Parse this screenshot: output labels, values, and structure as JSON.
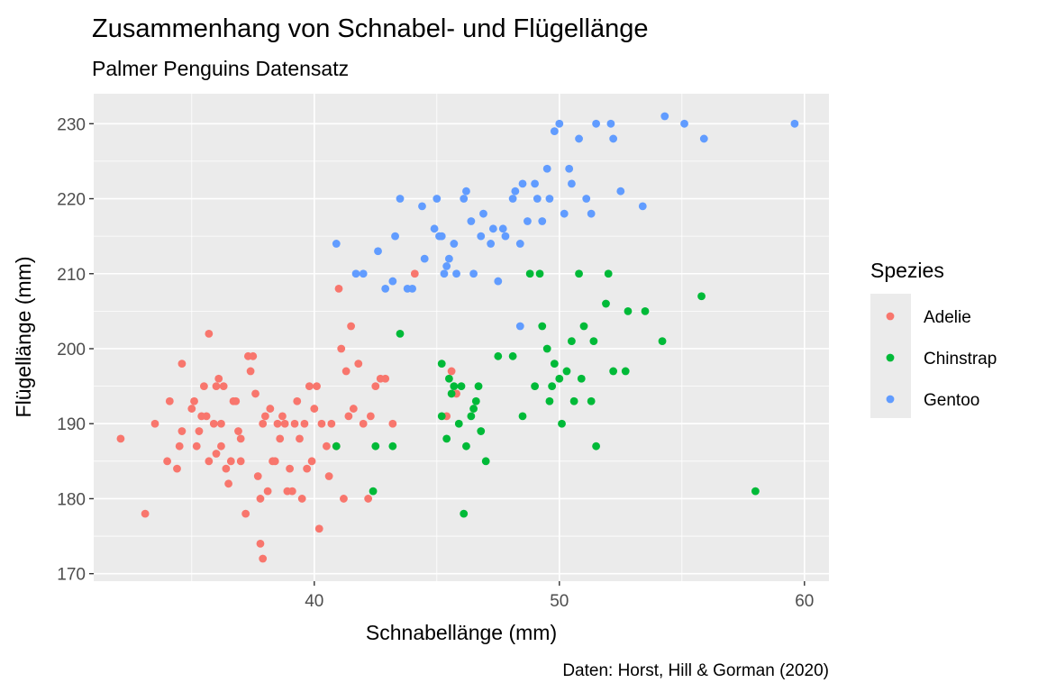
{
  "chart_data": {
    "type": "scatter",
    "title": "Zusammenhang von Schnabel- und Flügellänge",
    "subtitle": "Palmer Penguins Datensatz",
    "xlabel": "Schnabellänge (mm)",
    "ylabel": "Flügellänge (mm)",
    "caption": "Daten: Horst, Hill & Gorman (2020)",
    "xlim": [
      31,
      61
    ],
    "ylim": [
      169,
      234
    ],
    "x_ticks": [
      40,
      50,
      60
    ],
    "y_ticks": [
      170,
      180,
      190,
      200,
      210,
      220,
      230
    ],
    "grid": true,
    "background": "#ebebeb",
    "legend": {
      "title": "Spezies",
      "position": "right"
    },
    "series": [
      {
        "name": "Adelie",
        "color": "#F8766D",
        "points": [
          [
            32.1,
            188
          ],
          [
            33.1,
            178
          ],
          [
            33.5,
            190
          ],
          [
            34.0,
            185
          ],
          [
            34.1,
            193
          ],
          [
            34.4,
            184
          ],
          [
            34.5,
            187
          ],
          [
            34.6,
            198
          ],
          [
            34.6,
            189
          ],
          [
            35.0,
            192
          ],
          [
            35.1,
            193
          ],
          [
            35.2,
            187
          ],
          [
            35.3,
            189
          ],
          [
            35.5,
            195
          ],
          [
            35.6,
            191
          ],
          [
            35.7,
            185
          ],
          [
            35.7,
            202
          ],
          [
            35.9,
            190
          ],
          [
            36.0,
            195
          ],
          [
            36.0,
            186
          ],
          [
            36.2,
            187
          ],
          [
            36.2,
            190
          ],
          [
            36.3,
            195
          ],
          [
            36.4,
            184
          ],
          [
            36.5,
            182
          ],
          [
            36.6,
            185
          ],
          [
            36.7,
            193
          ],
          [
            36.8,
            193
          ],
          [
            37.0,
            185
          ],
          [
            37.2,
            178
          ],
          [
            37.3,
            199
          ],
          [
            37.5,
            199
          ],
          [
            37.6,
            194
          ],
          [
            37.7,
            183
          ],
          [
            37.8,
            174
          ],
          [
            37.8,
            180
          ],
          [
            37.9,
            172
          ],
          [
            37.9,
            190
          ],
          [
            38.1,
            181
          ],
          [
            38.2,
            192
          ],
          [
            38.3,
            185
          ],
          [
            38.5,
            190
          ],
          [
            38.6,
            188
          ],
          [
            38.7,
            191
          ],
          [
            38.8,
            190
          ],
          [
            38.9,
            181
          ],
          [
            39.0,
            184
          ],
          [
            39.1,
            181
          ],
          [
            39.2,
            190
          ],
          [
            39.3,
            193
          ],
          [
            39.5,
            180
          ],
          [
            39.6,
            190
          ],
          [
            39.7,
            184
          ],
          [
            39.8,
            195
          ],
          [
            40.0,
            192
          ],
          [
            40.2,
            176
          ],
          [
            40.3,
            190
          ],
          [
            40.5,
            187
          ],
          [
            40.6,
            183
          ],
          [
            40.7,
            190
          ],
          [
            40.9,
            187
          ],
          [
            41.0,
            208
          ],
          [
            41.1,
            200
          ],
          [
            41.3,
            197
          ],
          [
            41.4,
            191
          ],
          [
            41.5,
            203
          ],
          [
            41.6,
            192
          ],
          [
            41.8,
            198
          ],
          [
            42.0,
            190
          ],
          [
            42.2,
            180
          ],
          [
            42.3,
            191
          ],
          [
            42.5,
            195
          ],
          [
            42.7,
            196
          ],
          [
            42.9,
            196
          ],
          [
            43.2,
            190
          ],
          [
            44.1,
            210
          ],
          [
            45.6,
            197
          ],
          [
            45.8,
            194
          ],
          [
            45.4,
            191
          ],
          [
            37.0,
            188
          ],
          [
            36.9,
            189
          ],
          [
            38.0,
            191
          ],
          [
            39.4,
            188
          ],
          [
            40.1,
            195
          ],
          [
            41.2,
            180
          ],
          [
            37.4,
            197
          ],
          [
            38.4,
            185
          ],
          [
            35.4,
            191
          ],
          [
            36.1,
            196
          ],
          [
            39.9,
            185
          ]
        ]
      },
      {
        "name": "Chinstrap",
        "color": "#00BA38",
        "points": [
          [
            40.9,
            187
          ],
          [
            42.4,
            181
          ],
          [
            42.5,
            187
          ],
          [
            43.2,
            187
          ],
          [
            43.5,
            202
          ],
          [
            45.2,
            198
          ],
          [
            45.2,
            191
          ],
          [
            45.4,
            188
          ],
          [
            45.5,
            196
          ],
          [
            45.6,
            194
          ],
          [
            45.7,
            195
          ],
          [
            45.9,
            190
          ],
          [
            46.0,
            195
          ],
          [
            46.1,
            178
          ],
          [
            46.2,
            187
          ],
          [
            46.4,
            191
          ],
          [
            46.5,
            192
          ],
          [
            46.6,
            193
          ],
          [
            46.7,
            195
          ],
          [
            46.8,
            189
          ],
          [
            47.0,
            185
          ],
          [
            47.5,
            199
          ],
          [
            48.1,
            199
          ],
          [
            48.5,
            191
          ],
          [
            49.0,
            195
          ],
          [
            49.2,
            210
          ],
          [
            49.3,
            203
          ],
          [
            49.6,
            193
          ],
          [
            49.7,
            195
          ],
          [
            49.8,
            198
          ],
          [
            50.0,
            196
          ],
          [
            50.1,
            190
          ],
          [
            50.3,
            197
          ],
          [
            50.5,
            201
          ],
          [
            50.6,
            193
          ],
          [
            50.8,
            210
          ],
          [
            51.0,
            203
          ],
          [
            51.3,
            193
          ],
          [
            51.5,
            187
          ],
          [
            51.9,
            206
          ],
          [
            52.0,
            210
          ],
          [
            52.2,
            197
          ],
          [
            52.8,
            205
          ],
          [
            53.5,
            205
          ],
          [
            54.2,
            201
          ],
          [
            55.8,
            207
          ],
          [
            58.0,
            181
          ],
          [
            50.9,
            196
          ],
          [
            49.5,
            200
          ],
          [
            51.4,
            201
          ],
          [
            52.7,
            197
          ],
          [
            48.8,
            210
          ]
        ]
      },
      {
        "name": "Gentoo",
        "color": "#619CFF",
        "points": [
          [
            40.9,
            214
          ],
          [
            41.7,
            210
          ],
          [
            42.0,
            210
          ],
          [
            42.6,
            213
          ],
          [
            42.9,
            208
          ],
          [
            43.2,
            209
          ],
          [
            43.3,
            215
          ],
          [
            43.5,
            220
          ],
          [
            43.8,
            208
          ],
          [
            44.0,
            208
          ],
          [
            44.4,
            219
          ],
          [
            44.5,
            212
          ],
          [
            44.9,
            216
          ],
          [
            45.0,
            220
          ],
          [
            45.1,
            215
          ],
          [
            45.2,
            215
          ],
          [
            45.3,
            210
          ],
          [
            45.4,
            211
          ],
          [
            45.5,
            212
          ],
          [
            45.7,
            214
          ],
          [
            45.8,
            210
          ],
          [
            46.1,
            220
          ],
          [
            46.2,
            221
          ],
          [
            46.4,
            217
          ],
          [
            46.5,
            210
          ],
          [
            46.8,
            215
          ],
          [
            47.2,
            214
          ],
          [
            47.3,
            216
          ],
          [
            47.5,
            209
          ],
          [
            47.7,
            216
          ],
          [
            48.1,
            220
          ],
          [
            48.2,
            221
          ],
          [
            48.4,
            214
          ],
          [
            48.5,
            222
          ],
          [
            48.7,
            217
          ],
          [
            49.0,
            222
          ],
          [
            49.1,
            220
          ],
          [
            49.5,
            224
          ],
          [
            49.6,
            220
          ],
          [
            49.8,
            229
          ],
          [
            50.0,
            230
          ],
          [
            50.2,
            218
          ],
          [
            50.4,
            224
          ],
          [
            50.5,
            222
          ],
          [
            50.8,
            228
          ],
          [
            51.1,
            220
          ],
          [
            51.3,
            218
          ],
          [
            51.5,
            230
          ],
          [
            52.1,
            230
          ],
          [
            52.2,
            228
          ],
          [
            52.5,
            221
          ],
          [
            53.4,
            219
          ],
          [
            54.3,
            231
          ],
          [
            55.1,
            230
          ],
          [
            55.9,
            228
          ],
          [
            59.6,
            230
          ],
          [
            48.4,
            203
          ],
          [
            49.3,
            217
          ],
          [
            47.8,
            215
          ],
          [
            46.9,
            218
          ]
        ]
      }
    ]
  }
}
